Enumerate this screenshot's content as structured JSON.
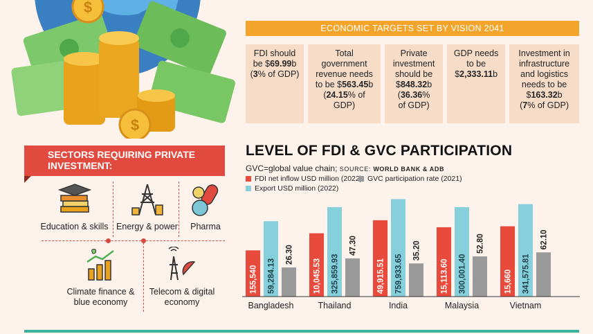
{
  "targets_header": "ECONOMIC TARGETS SET BY VISION 2041",
  "targets": [
    {
      "lines": [
        [
          "FDI should",
          ""
        ],
        [
          "be $",
          "69.99",
          "b"
        ],
        [
          "",
          "3",
          "% of GDP)"
        ]
      ],
      "pre": [
        "FDI should",
        "be $"
      ],
      "text": "FDI should be $69.99b (3% of GDP)"
    },
    {
      "text": "Total government revenue needs to be $563.45b (24.15% of GDP)"
    },
    {
      "text": "Private investment should be $848.32b (36.36% of GDP)"
    },
    {
      "text": "GDP needs to be $2,333.11b"
    },
    {
      "text": "Investment in infrastructure and logistics needs to be $163.32b (7% of GDP)"
    }
  ],
  "sectors_header": [
    "SECTORS REQUIRING PRIVATE",
    "INVESTMENT:"
  ],
  "sectors": [
    {
      "label": "Education & skills",
      "icon": "graduation-cap-books-icon"
    },
    {
      "label": "Energy & power",
      "icon": "power-tower-icon"
    },
    {
      "label": "Pharma",
      "icon": "pills-icon"
    },
    {
      "label": [
        "Climate finance &",
        "blue economy"
      ],
      "icon": "plant-coins-chart-icon"
    },
    {
      "label": [
        "Telecom & digital",
        "economy"
      ],
      "icon": "satellite-dish-icon"
    }
  ],
  "chart_data": {
    "type": "bar",
    "title": "LEVEL OF FDI & GVC PARTICIPATION",
    "subtitle": "GVC=global value chain;",
    "source_label": "SOURCE:",
    "source": "WORLD BANK & ADB",
    "categories": [
      "Bangladesh",
      "Thailand",
      "India",
      "Malaysia",
      "Vietnam"
    ],
    "series": [
      {
        "name": "FDI net inflow USD million (2022)",
        "color": "#e84a3c",
        "values": [
          155540,
          10045.53,
          49915.51,
          15113.6,
          15660
        ],
        "labels": [
          "155,540",
          "10,045.53",
          "49,915.51",
          "15,113.60",
          "15,660"
        ],
        "heights": [
          0.46,
          0.63,
          0.76,
          0.69,
          0.7
        ]
      },
      {
        "name": "Export USD million (2022)",
        "color": "#86d0dc",
        "values": [
          59284.13,
          325859.93,
          759933.65,
          300001.4,
          341575.81
        ],
        "labels": [
          "59,284.13",
          "325,859.93",
          "759,933.65",
          "300,001.40",
          "341,575.81"
        ],
        "heights": [
          0.75,
          0.89,
          0.97,
          0.89,
          0.92
        ]
      },
      {
        "name": "GVC participation rate (2021)",
        "color": "#9a9a9a",
        "values": [
          26.3,
          47.3,
          35.2,
          52.8,
          62.1
        ],
        "labels": [
          "26.30",
          "47.30",
          "35.20",
          "52.80",
          "62.10"
        ],
        "heights": [
          0.29,
          0.38,
          0.33,
          0.4,
          0.44
        ]
      }
    ],
    "legend_placement": "top-left",
    "grid": false
  },
  "colors": {
    "accent": "#f2a52a",
    "red": "#e14b3f",
    "teal": "#39b39a",
    "card": "#f7dcc8",
    "bg": "#fdf3ec"
  }
}
